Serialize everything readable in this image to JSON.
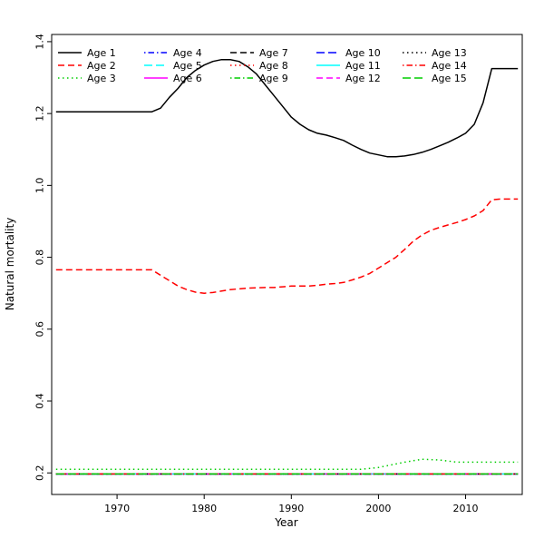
{
  "chart_data": {
    "type": "line",
    "title": "",
    "xlabel": "Year",
    "ylabel": "Natural mortality",
    "xlim": [
      1962.5,
      2016.5
    ],
    "ylim": [
      0.14,
      1.42
    ],
    "xticks": [
      1970,
      1980,
      1990,
      2000,
      2010
    ],
    "xtick_labels": [
      "1970",
      "1980",
      "1990",
      "2000",
      "2010"
    ],
    "yticks": [
      0.2,
      0.4,
      0.6,
      0.8,
      1.0,
      1.2,
      1.4
    ],
    "ytick_labels": [
      "0.2",
      "0.4",
      "0.6",
      "0.8",
      "1.0",
      "1.2",
      "1.4"
    ],
    "grid": false,
    "legend_position": "top-left",
    "legend_columns": 5,
    "legend_rows": 3,
    "series": [
      {
        "name": "Age 1",
        "color": "#000000",
        "linetype": "solid",
        "points": [
          [
            1963,
            1.205
          ],
          [
            1974,
            1.205
          ],
          [
            1975,
            1.215
          ],
          [
            1976,
            1.245
          ],
          [
            1977,
            1.27
          ],
          [
            1978,
            1.3
          ],
          [
            1979,
            1.32
          ],
          [
            1980,
            1.335
          ],
          [
            1981,
            1.345
          ],
          [
            1982,
            1.35
          ],
          [
            1983,
            1.35
          ],
          [
            1984,
            1.345
          ],
          [
            1985,
            1.33
          ],
          [
            1986,
            1.31
          ],
          [
            1987,
            1.28
          ],
          [
            1988,
            1.25
          ],
          [
            1989,
            1.22
          ],
          [
            1990,
            1.19
          ],
          [
            1991,
            1.17
          ],
          [
            1992,
            1.155
          ],
          [
            1993,
            1.145
          ],
          [
            1994,
            1.14
          ],
          [
            1995,
            1.133
          ],
          [
            1996,
            1.125
          ],
          [
            1997,
            1.112
          ],
          [
            1998,
            1.1
          ],
          [
            1999,
            1.09
          ],
          [
            2000,
            1.085
          ],
          [
            2001,
            1.08
          ],
          [
            2002,
            1.08
          ],
          [
            2003,
            1.082
          ],
          [
            2004,
            1.086
          ],
          [
            2005,
            1.092
          ],
          [
            2006,
            1.1
          ],
          [
            2007,
            1.11
          ],
          [
            2008,
            1.12
          ],
          [
            2009,
            1.132
          ],
          [
            2010,
            1.145
          ],
          [
            2011,
            1.17
          ],
          [
            2012,
            1.23
          ],
          [
            2013,
            1.325
          ],
          [
            2014,
            1.325
          ],
          [
            2015,
            1.325
          ],
          [
            2016,
            1.325
          ]
        ]
      },
      {
        "name": "Age 2",
        "color": "#ff0000",
        "linetype": "dashed",
        "points": [
          [
            1963,
            0.765
          ],
          [
            1974,
            0.765
          ],
          [
            1975,
            0.75
          ],
          [
            1976,
            0.735
          ],
          [
            1977,
            0.72
          ],
          [
            1978,
            0.71
          ],
          [
            1979,
            0.703
          ],
          [
            1980,
            0.7
          ],
          [
            1981,
            0.702
          ],
          [
            1982,
            0.706
          ],
          [
            1983,
            0.71
          ],
          [
            1984,
            0.712
          ],
          [
            1985,
            0.714
          ],
          [
            1986,
            0.715
          ],
          [
            1987,
            0.716
          ],
          [
            1988,
            0.716
          ],
          [
            1989,
            0.718
          ],
          [
            1990,
            0.72
          ],
          [
            1991,
            0.72
          ],
          [
            1992,
            0.72
          ],
          [
            1993,
            0.722
          ],
          [
            1994,
            0.725
          ],
          [
            1995,
            0.727
          ],
          [
            1996,
            0.73
          ],
          [
            1997,
            0.737
          ],
          [
            1998,
            0.745
          ],
          [
            1999,
            0.755
          ],
          [
            2000,
            0.77
          ],
          [
            2001,
            0.785
          ],
          [
            2002,
            0.8
          ],
          [
            2003,
            0.822
          ],
          [
            2004,
            0.845
          ],
          [
            2005,
            0.862
          ],
          [
            2006,
            0.875
          ],
          [
            2007,
            0.883
          ],
          [
            2008,
            0.89
          ],
          [
            2009,
            0.897
          ],
          [
            2010,
            0.905
          ],
          [
            2011,
            0.915
          ],
          [
            2012,
            0.93
          ],
          [
            2013,
            0.96
          ],
          [
            2014,
            0.962
          ],
          [
            2015,
            0.962
          ],
          [
            2016,
            0.962
          ]
        ]
      },
      {
        "name": "Age 3",
        "color": "#00cd00",
        "linetype": "dotted",
        "points": [
          [
            1963,
            0.21
          ],
          [
            1998,
            0.21
          ],
          [
            2000,
            0.215
          ],
          [
            2003,
            0.23
          ],
          [
            2005,
            0.238
          ],
          [
            2007,
            0.236
          ],
          [
            2009,
            0.23
          ],
          [
            2016,
            0.23
          ]
        ]
      },
      {
        "name": "Age 4",
        "color": "#0000ff",
        "linetype": "dotdash",
        "points": [
          [
            1963,
            0.197
          ],
          [
            2016,
            0.197
          ]
        ]
      },
      {
        "name": "Age 5",
        "color": "#00ffff",
        "linetype": "longdash",
        "points": [
          [
            1963,
            0.197
          ],
          [
            2016,
            0.197
          ]
        ]
      },
      {
        "name": "Age 6",
        "color": "#ff00ff",
        "linetype": "solid",
        "points": [
          [
            1963,
            0.197
          ],
          [
            2016,
            0.197
          ]
        ]
      },
      {
        "name": "Age 7",
        "color": "#000000",
        "linetype": "dashed",
        "points": [
          [
            1963,
            0.197
          ],
          [
            2016,
            0.197
          ]
        ]
      },
      {
        "name": "Age 8",
        "color": "#ff0000",
        "linetype": "dotted",
        "points": [
          [
            1963,
            0.197
          ],
          [
            2016,
            0.197
          ]
        ]
      },
      {
        "name": "Age 9",
        "color": "#00cd00",
        "linetype": "dotdash",
        "points": [
          [
            1963,
            0.197
          ],
          [
            2016,
            0.197
          ]
        ]
      },
      {
        "name": "Age 10",
        "color": "#0000ff",
        "linetype": "longdash",
        "points": [
          [
            1963,
            0.197
          ],
          [
            2016,
            0.197
          ]
        ]
      },
      {
        "name": "Age 11",
        "color": "#00ffff",
        "linetype": "solid",
        "points": [
          [
            1963,
            0.197
          ],
          [
            2016,
            0.197
          ]
        ]
      },
      {
        "name": "Age 12",
        "color": "#ff00ff",
        "linetype": "dashed",
        "points": [
          [
            1963,
            0.197
          ],
          [
            2016,
            0.197
          ]
        ]
      },
      {
        "name": "Age 13",
        "color": "#000000",
        "linetype": "dotted",
        "points": [
          [
            1963,
            0.197
          ],
          [
            2016,
            0.197
          ]
        ]
      },
      {
        "name": "Age 14",
        "color": "#ff0000",
        "linetype": "dotdash",
        "points": [
          [
            1963,
            0.197
          ],
          [
            2016,
            0.197
          ]
        ]
      },
      {
        "name": "Age 15",
        "color": "#00cd00",
        "linetype": "longdash",
        "points": [
          [
            1963,
            0.197
          ],
          [
            2016,
            0.197
          ]
        ]
      }
    ]
  }
}
